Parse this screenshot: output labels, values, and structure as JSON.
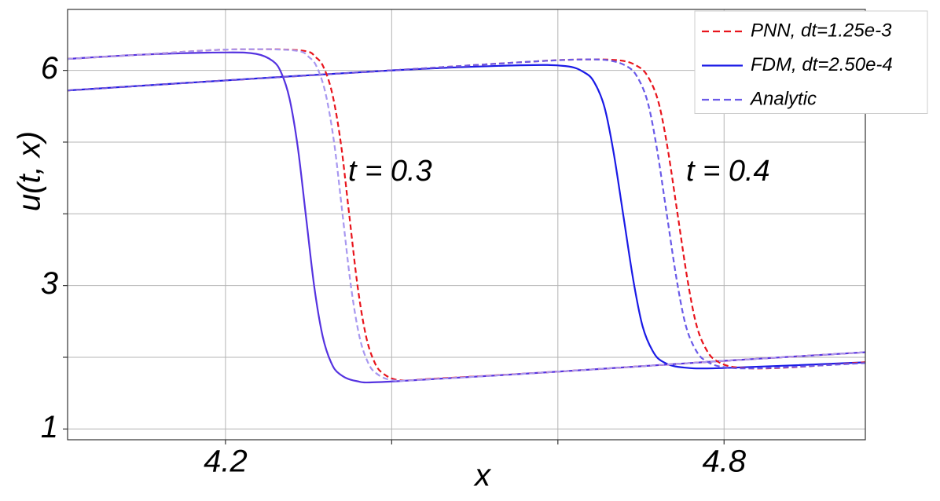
{
  "chart_data": {
    "type": "line",
    "xlabel": "x",
    "ylabel": "u(t, x)",
    "annotations": [
      "t = 0.3",
      "t = 0.4"
    ],
    "xlim": [
      4.01,
      4.97
    ],
    "xticks": [
      4.2,
      4.8
    ],
    "xminor_ticks": [
      4.4,
      4.6
    ],
    "ylim": [
      0.85,
      6.85
    ],
    "yticks": [
      1,
      3,
      6
    ],
    "yminor_ticks": [
      2,
      4,
      5
    ],
    "grid": true,
    "legend": "upper right",
    "series": [
      {
        "name": "PNN, dt=1.25e-3",
        "color": "#e8141c",
        "dash": true,
        "x": [
          4.01,
          4.2,
          4.4,
          4.55,
          4.62,
          4.674,
          4.697,
          4.709,
          4.721,
          4.732,
          4.744,
          4.756,
          4.767,
          4.779,
          4.791,
          4.814,
          4.864,
          4.97
        ],
        "values": [
          5.72,
          5.86,
          6.0,
          6.11,
          6.15,
          6.14,
          6.05,
          5.9,
          5.56,
          4.92,
          4.0,
          3.08,
          2.44,
          2.1,
          1.95,
          1.86,
          1.85,
          1.93
        ]
      },
      {
        "name": "FDM, dt=2.50e-4",
        "color": "#1a1ae6",
        "dash": false,
        "x": [
          4.01,
          4.2,
          4.4,
          4.55,
          4.609,
          4.632,
          4.644,
          4.656,
          4.667,
          4.679,
          4.691,
          4.702,
          4.714,
          4.726,
          4.749,
          4.799,
          4.97
        ],
        "values": [
          5.72,
          5.86,
          6.0,
          6.07,
          6.06,
          5.97,
          5.83,
          5.49,
          4.86,
          3.96,
          3.06,
          2.43,
          2.09,
          1.94,
          1.86,
          1.85,
          1.93
        ]
      },
      {
        "name": "Analytic",
        "color": "#6a5ae8",
        "dash": true,
        "x": [
          4.01,
          4.2,
          4.4,
          4.55,
          4.62,
          4.661,
          4.684,
          4.696,
          4.708,
          4.719,
          4.731,
          4.743,
          4.754,
          4.766,
          4.778,
          4.801,
          4.851,
          4.97
        ],
        "values": [
          5.72,
          5.86,
          6.0,
          6.11,
          6.15,
          6.14,
          6.05,
          5.9,
          5.56,
          4.92,
          4.0,
          3.08,
          2.44,
          2.1,
          1.95,
          1.86,
          1.85,
          1.92
        ]
      },
      {
        "color": "#e8141c",
        "dash": true,
        "x": [
          4.01,
          4.1,
          4.2,
          4.289,
          4.309,
          4.319,
          4.329,
          4.339,
          4.349,
          4.359,
          4.369,
          4.379,
          4.389,
          4.409,
          4.449,
          4.6,
          4.8,
          4.97
        ],
        "values": [
          6.16,
          6.22,
          6.29,
          6.28,
          6.18,
          6.02,
          5.65,
          4.97,
          3.98,
          2.99,
          2.3,
          1.94,
          1.78,
          1.68,
          1.7,
          1.8,
          1.95,
          2.07
        ]
      },
      {
        "color": "#5533e0",
        "dash": false,
        "x": [
          4.01,
          4.1,
          4.2,
          4.237,
          4.257,
          4.267,
          4.277,
          4.287,
          4.297,
          4.307,
          4.317,
          4.327,
          4.337,
          4.357,
          4.397,
          4.6,
          4.8,
          4.97
        ],
        "values": [
          6.16,
          6.22,
          6.25,
          6.23,
          6.13,
          5.97,
          5.61,
          4.93,
          3.95,
          2.97,
          2.29,
          1.93,
          1.77,
          1.67,
          1.66,
          1.8,
          1.95,
          2.07
        ]
      },
      {
        "color": "#a898f0",
        "dash": true,
        "x": [
          4.01,
          4.1,
          4.2,
          4.281,
          4.301,
          4.311,
          4.321,
          4.331,
          4.341,
          4.351,
          4.361,
          4.371,
          4.381,
          4.401,
          4.441,
          4.6,
          4.8,
          4.97
        ],
        "values": [
          6.16,
          6.22,
          6.29,
          6.28,
          6.18,
          6.02,
          5.65,
          4.97,
          3.98,
          2.99,
          2.3,
          1.94,
          1.78,
          1.68,
          1.69,
          1.8,
          1.95,
          2.07
        ]
      }
    ]
  }
}
